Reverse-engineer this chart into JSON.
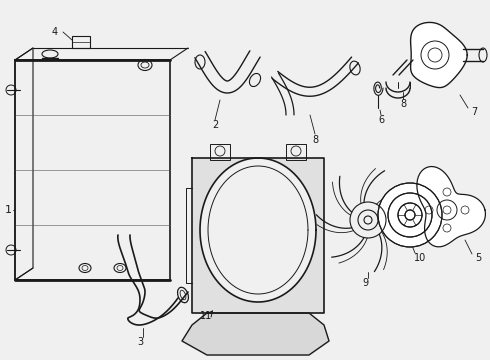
{
  "background_color": "#f0f0f0",
  "line_color": "#1a1a1a",
  "lw": 1.0,
  "figsize": [
    4.9,
    3.6
  ],
  "dpi": 100
}
